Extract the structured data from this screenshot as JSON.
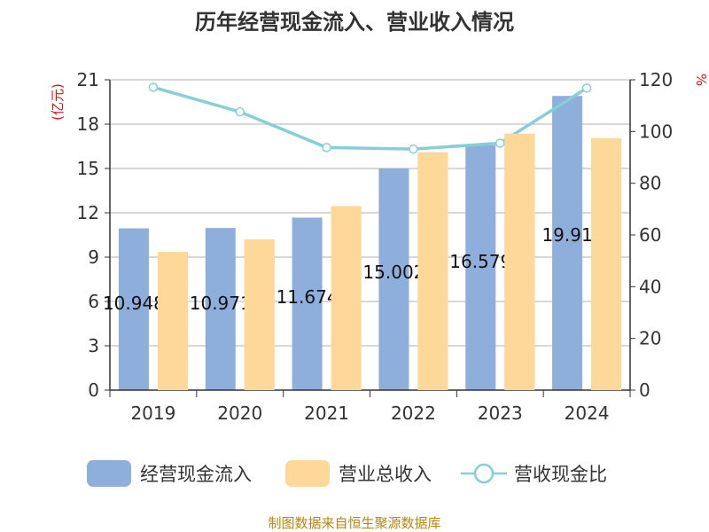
{
  "chart_data": {
    "type": "bar",
    "title": "历年经营现金流入、营业收入情况",
    "categories": [
      "2019",
      "2020",
      "2021",
      "2022",
      "2023",
      "2024"
    ],
    "series": [
      {
        "name": "经营现金流入",
        "type": "bar",
        "axis": "left",
        "color": "#8eaedb",
        "values": [
          10.948,
          10.971,
          11.674,
          15.002,
          16.579,
          19.91
        ]
      },
      {
        "name": "营业总收入",
        "type": "bar",
        "axis": "left",
        "color": "#fdd898",
        "values": [
          9.35,
          10.2,
          12.45,
          16.1,
          17.35,
          17.05
        ]
      },
      {
        "name": "营收现金比",
        "type": "line",
        "axis": "right",
        "color": "#84d0d6",
        "values": [
          117.1,
          107.6,
          93.8,
          93.2,
          95.5,
          116.8
        ]
      }
    ],
    "data_labels": [
      "10.948",
      "10.971",
      "11.674",
      "15.002",
      "16.579",
      "19.91"
    ],
    "y_left": {
      "unit": "(亿元)",
      "min": 0,
      "max": 21,
      "ticks": [
        "0",
        "3",
        "6",
        "9",
        "12",
        "15",
        "18",
        "21"
      ]
    },
    "y_right": {
      "unit": "%",
      "min": 0,
      "max": 120,
      "ticks": [
        "0",
        "20",
        "40",
        "60",
        "80",
        "100",
        "120"
      ]
    },
    "grid": true,
    "legend_position": "bottom"
  },
  "source": "制图数据来自恒生聚源数据库"
}
